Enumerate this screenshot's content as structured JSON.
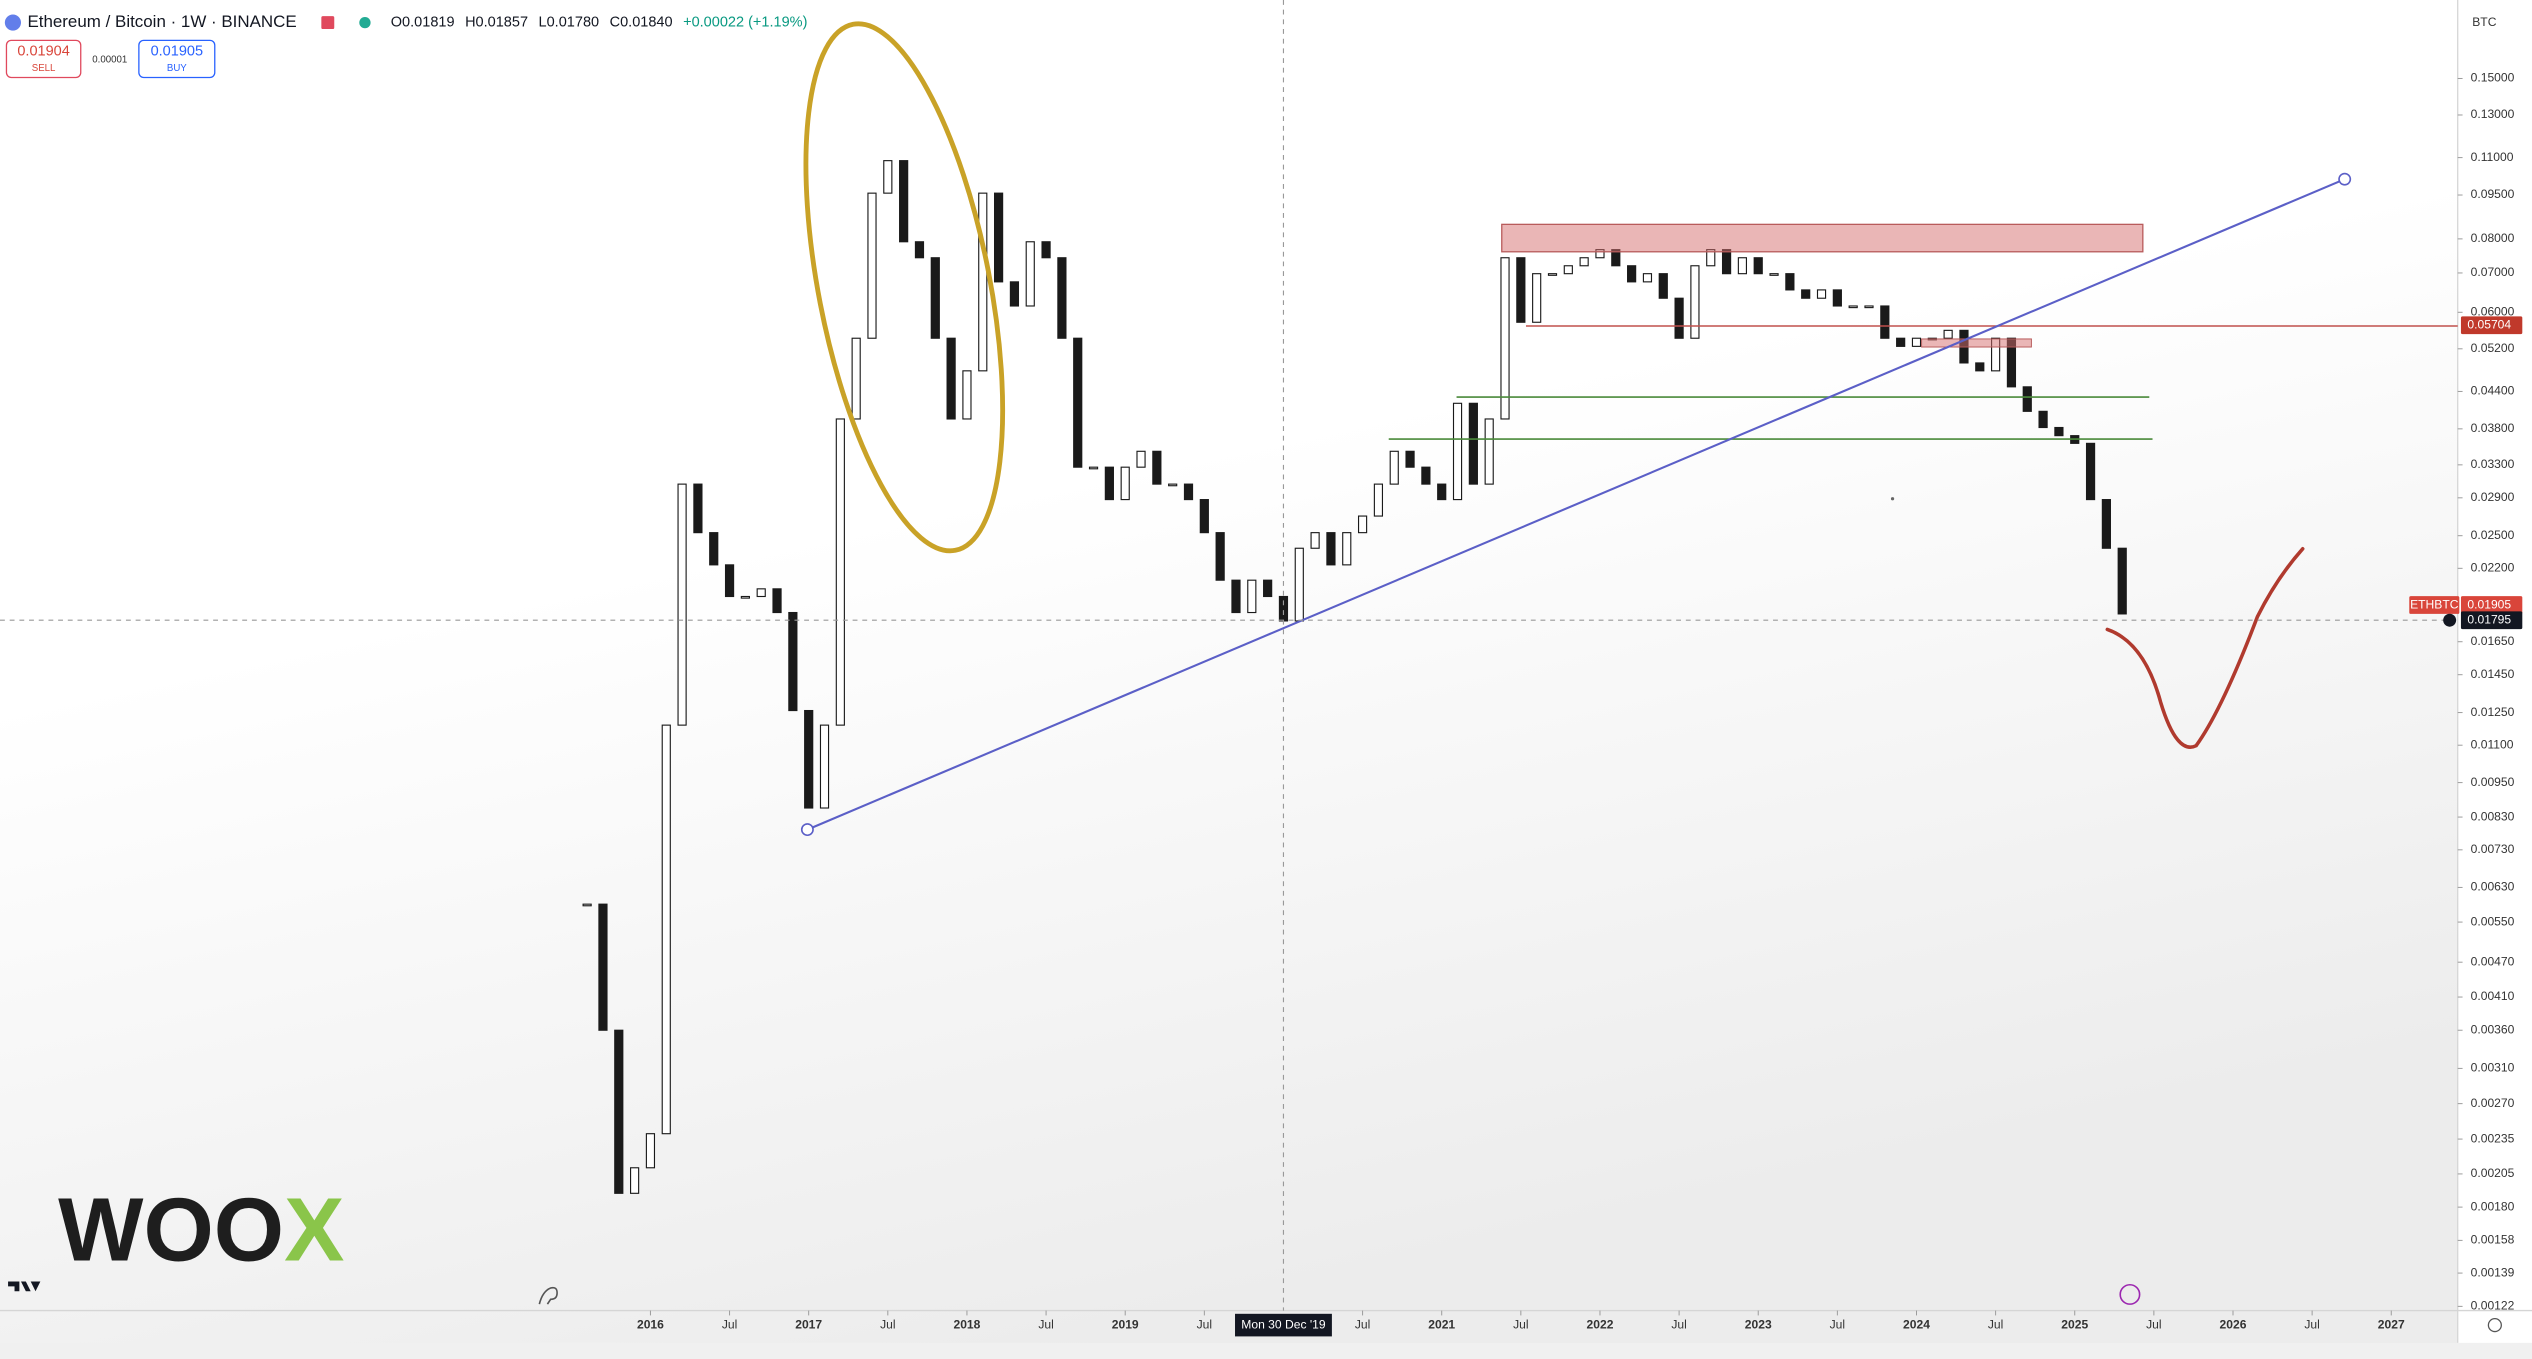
{
  "header": {
    "symbol": "Ethereum / Bitcoin · 1W · BINANCE",
    "open": "O0.01819",
    "high": "H0.01857",
    "low": "L0.01780",
    "close": "C0.01840",
    "change": "+0.00022 (+1.19%)"
  },
  "order": {
    "sell_price": "0.01904",
    "sell": "SELL",
    "spread": "0.00001",
    "buy_price": "0.01905",
    "buy": "BUY"
  },
  "chart_data": {
    "type": "candlestick",
    "log_scale": true,
    "currency": "BTC",
    "up_color": "#ffffff",
    "down_color": "#1a1a1a",
    "x": [
      2015.6,
      2015.7,
      2015.8,
      2015.9,
      2016,
      2016.1,
      2016.2,
      2016.3,
      2016.4,
      2016.5,
      2016.6,
      2016.7,
      2016.8,
      2016.9,
      2017,
      2017.1,
      2017.2,
      2017.3,
      2017.4,
      2017.5,
      2017.6,
      2017.7,
      2017.8,
      2017.9,
      2018,
      2018.1,
      2018.2,
      2018.3,
      2018.4,
      2018.5,
      2018.6,
      2018.7,
      2018.8,
      2018.9,
      2019,
      2019.1,
      2019.2,
      2019.3,
      2019.4,
      2019.5,
      2019.6,
      2019.7,
      2019.8,
      2019.9,
      2020,
      2020.1,
      2020.2,
      2020.3,
      2020.4,
      2020.5,
      2020.6,
      2020.7,
      2020.8,
      2020.9,
      2021,
      2021.1,
      2021.2,
      2021.3,
      2021.4,
      2021.5,
      2021.6,
      2021.7,
      2021.8,
      2021.9,
      2022,
      2022.1,
      2022.2,
      2022.3,
      2022.4,
      2022.5,
      2022.6,
      2022.7,
      2022.8,
      2022.9,
      2023,
      2023.1,
      2023.2,
      2023.3,
      2023.4,
      2023.5,
      2023.6,
      2023.7,
      2023.8,
      2023.9,
      2024,
      2024.1,
      2024.2,
      2024.3,
      2024.4,
      2024.5,
      2024.6,
      2024.7,
      2024.8,
      2024.9,
      2025,
      2025.1,
      2025.2,
      2025.3
    ],
    "values": [
      0.0059,
      0.0036,
      0.0019,
      0.0021,
      0.0024,
      0.0119,
      0.0306,
      0.0253,
      0.0223,
      0.0197,
      0.0197,
      0.0203,
      0.0185,
      0.0126,
      0.0086,
      0.0119,
      0.0395,
      0.0542,
      0.0957,
      0.1087,
      0.0791,
      0.0743,
      0.0542,
      0.0395,
      0.0477,
      0.0957,
      0.0676,
      0.0615,
      0.0791,
      0.0743,
      0.0542,
      0.0327,
      0.0327,
      0.0288,
      0.0327,
      0.0348,
      0.0306,
      0.0306,
      0.0288,
      0.0253,
      0.021,
      0.0185,
      0.021,
      0.0197,
      0.0179,
      0.0238,
      0.0253,
      0.0223,
      0.0253,
      0.027,
      0.0306,
      0.0348,
      0.0327,
      0.0306,
      0.0288,
      0.042,
      0.0306,
      0.0395,
      0.0743,
      0.0577,
      0.0698,
      0.0698,
      0.072,
      0.0743,
      0.0767,
      0.072,
      0.0676,
      0.0698,
      0.0634,
      0.0542,
      0.072,
      0.0767,
      0.0698,
      0.0743,
      0.0698,
      0.0698,
      0.0655,
      0.0634,
      0.0655,
      0.0615,
      0.0615,
      0.0615,
      0.0542,
      0.0525,
      0.0542,
      0.0542,
      0.0559,
      0.0492,
      0.0477,
      0.0542,
      0.0448,
      0.0407,
      0.0382,
      0.037,
      0.0359,
      0.0288,
      0.0238,
      0.0184
    ],
    "ylim": [
      0.0012,
      0.204
    ],
    "xlim": [
      2011.89,
      2027.42
    ],
    "yticks": [
      {
        "value": 0.15,
        "label": "0.15000"
      },
      {
        "value": 0.13,
        "label": "0.13000"
      },
      {
        "value": 0.11,
        "label": "0.11000"
      },
      {
        "value": 0.095,
        "label": "0.09500"
      },
      {
        "value": 0.08,
        "label": "0.08000"
      },
      {
        "value": 0.07,
        "label": "0.07000"
      },
      {
        "value": 0.06,
        "label": "0.06000"
      },
      {
        "value": 0.052,
        "label": "0.05200"
      },
      {
        "value": 0.044,
        "label": "0.04400"
      },
      {
        "value": 0.038,
        "label": "0.03800"
      },
      {
        "value": 0.033,
        "label": "0.03300"
      },
      {
        "value": 0.029,
        "label": "0.02900"
      },
      {
        "value": 0.025,
        "label": "0.02500"
      },
      {
        "value": 0.022,
        "label": "0.02200"
      },
      {
        "value": 0.0165,
        "label": "0.01650"
      },
      {
        "value": 0.0145,
        "label": "0.01450"
      },
      {
        "value": 0.0125,
        "label": "0.01250"
      },
      {
        "value": 0.011,
        "label": "0.01100"
      },
      {
        "value": 0.0095,
        "label": "0.00950"
      },
      {
        "value": 0.0083,
        "label": "0.00830"
      },
      {
        "value": 0.0073,
        "label": "0.00730"
      },
      {
        "value": 0.0063,
        "label": "0.00630"
      },
      {
        "value": 0.0055,
        "label": "0.00550"
      },
      {
        "value": 0.0047,
        "label": "0.00470"
      },
      {
        "value": 0.0041,
        "label": "0.00410"
      },
      {
        "value": 0.0036,
        "label": "0.00360"
      },
      {
        "value": 0.0031,
        "label": "0.00310"
      },
      {
        "value": 0.0027,
        "label": "0.00270"
      },
      {
        "value": 0.00235,
        "label": "0.00235"
      },
      {
        "value": 0.00205,
        "label": "0.00205"
      },
      {
        "value": 0.0018,
        "label": "0.00180"
      },
      {
        "value": 0.00158,
        "label": "0.00158"
      },
      {
        "value": 0.00139,
        "label": "0.00139"
      },
      {
        "value": 0.00122,
        "label": "0.00122"
      }
    ],
    "xticks": [
      2016,
      {
        "value": 2016.5,
        "label": "Jul"
      },
      2017,
      {
        "value": 2017.5,
        "label": "Jul"
      },
      2018,
      {
        "value": 2018.5,
        "label": "Jul"
      },
      2019,
      {
        "value": 2019.5,
        "label": "Jul"
      },
      {
        "value": 2020.5,
        "label": "Jul"
      },
      2021,
      {
        "value": 2021.5,
        "label": "Jul"
      },
      2022,
      {
        "value": 2022.5,
        "label": "Jul"
      },
      2023,
      {
        "value": 2023.5,
        "label": "Jul"
      },
      2024,
      {
        "value": 2024.5,
        "label": "Jul"
      },
      2025,
      {
        "value": 2025.5,
        "label": "Jul"
      },
      2026,
      {
        "value": 2026.5,
        "label": "Jul"
      },
      2027
    ],
    "crosshair": {
      "x": {
        "value": 2020,
        "label": "Mon 30 Dec '19"
      },
      "y": {
        "value": 0.01795,
        "label": "0.01795"
      }
    },
    "price_tags": [
      {
        "value": 0.05704,
        "label": "0.05704",
        "color": "#c0392b"
      },
      {
        "name": "ETHBTC",
        "value": 0.01905,
        "label": "0.01905",
        "color": "#d9453a"
      }
    ]
  },
  "watermark": {
    "dark": "WOO",
    "accent": "X"
  }
}
